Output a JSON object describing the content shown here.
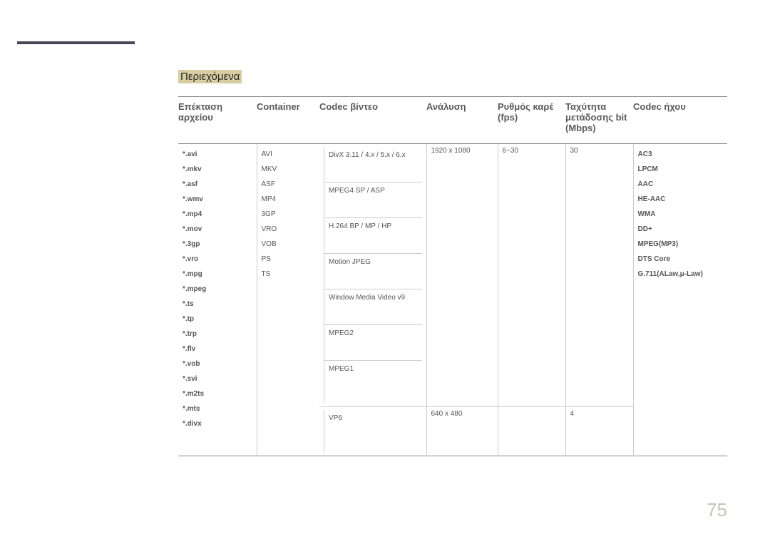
{
  "label_box": "Περιεχόμενα",
  "headers": {
    "ext": "Επέκταση αρχείου",
    "container": "Container",
    "vcodec": "Codec βίντεο",
    "res": "Ανάλυση",
    "fps": "Ρυθμός καρέ (fps)",
    "br": "Ταχύτητα μετάδοσης bit (Mbps)",
    "acodec": "Codec ήχου"
  },
  "extensions": [
    "*.avi",
    "*.mkv",
    "*.asf",
    "*.wmv",
    "*.mp4",
    "*.mov",
    "*.3gp",
    "*.vro",
    "*.mpg",
    "*.mpeg",
    "*.ts",
    "*.tp",
    "*.trp",
    "*.flv",
    "*.vob",
    "*.svi",
    "*.m2ts",
    "*.mts",
    "*.divx"
  ],
  "containers": [
    "AVI",
    "MKV",
    "ASF",
    "MP4",
    "3GP",
    "VRO",
    "VOB",
    "PS",
    "TS"
  ],
  "vcodecs_main": [
    "DivX 3.11 / 4.x / 5.x / 6.x",
    "MPEG4 SP / ASP",
    "H.264 BP / MP / HP",
    "Motion JPEG",
    "Window Media Video v9",
    "MPEG2",
    "MPEG1"
  ],
  "vcodec_vp6": "VP6",
  "res_main": "1920 x 1080",
  "res_vp6": "640 x 480",
  "fps_main": "6~30",
  "br_main": "30",
  "br_vp6": "4",
  "acodecs": [
    "AC3",
    "LPCM",
    "AAC",
    "HE-AAC",
    "WMA",
    "DD+",
    "MPEG(MP3)",
    "DTS Core",
    "G.711(ALaw,μ-Law)"
  ],
  "page_number": "75",
  "colors": {
    "header_line": "#4a4355",
    "highlight_bg": "#d8cca0",
    "border": "#888",
    "cell_border": "#ccc",
    "page_num": "#c8c2b8"
  }
}
